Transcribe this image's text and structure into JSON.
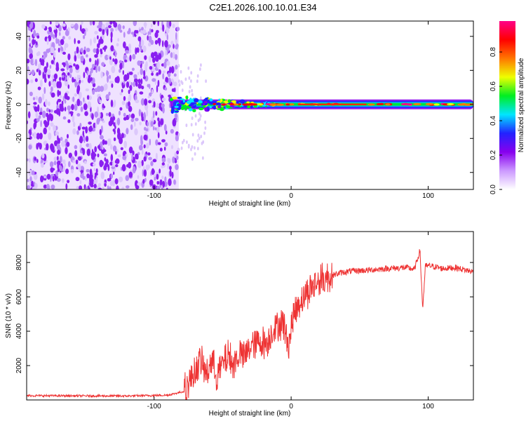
{
  "title": "C2E1.2026.100.10.01.E34",
  "chart_data": [
    {
      "type": "heatmap",
      "name": "spectrogram",
      "xlabel": "Height of straight line (km)",
      "ylabel": "Frequency (Hz)",
      "xlim": [
        -193,
        133
      ],
      "ylim": [
        -50,
        49
      ],
      "xticks": [
        -100,
        0,
        100
      ],
      "xtick_labels": [
        "-100",
        "0",
        "100"
      ],
      "yticks": [
        -40,
        -20,
        0,
        20,
        40
      ],
      "ytick_labels": [
        "-40",
        "-20",
        "0",
        "20",
        "40"
      ],
      "noise_region_x": [
        -193,
        -82
      ],
      "signal_center_hz": 0,
      "colorbar": {
        "label": "Normalized spectral amplitude",
        "range": [
          0,
          0.98
        ],
        "ticks": [
          0,
          0.2,
          0.4,
          0.6,
          0.8
        ],
        "tick_labels": [
          "0.0",
          "0.2",
          "0.4",
          "0.6",
          "0.8"
        ],
        "colors": [
          "#ffffff",
          "#cc99ff",
          "#8800ee",
          "#2222ff",
          "#00e5ff",
          "#00ee22",
          "#eeff00",
          "#ff7700",
          "#ff0000",
          "#ff0088"
        ]
      }
    },
    {
      "type": "line",
      "name": "snr",
      "xlabel": "Height of straight line (km)",
      "ylabel": "SNR (10 * v/v)",
      "xlim": [
        -193,
        133
      ],
      "ylim": [
        0,
        9800
      ],
      "xticks": [
        -100,
        0,
        100
      ],
      "xtick_labels": [
        "-100",
        "0",
        "100"
      ],
      "yticks": [
        2000,
        4000,
        6000,
        8000
      ],
      "ytick_labels": [
        "2000",
        "4000",
        "6000",
        "8000"
      ],
      "color": "#ee3333",
      "series": [
        {
          "name": "SNR",
          "x": [
            -193,
            -160,
            -120,
            -90,
            -78,
            -74,
            -70,
            -66,
            -62,
            -58,
            -54,
            -50,
            -46,
            -42,
            -38,
            -34,
            -30,
            -26,
            -22,
            -18,
            -14,
            -10,
            -6,
            -2,
            2,
            6,
            10,
            14,
            20,
            28,
            36,
            44,
            56,
            70,
            84,
            90,
            94,
            96,
            98,
            102,
            110,
            120,
            133
          ],
          "y": [
            250,
            240,
            230,
            280,
            500,
            1100,
            1700,
            2300,
            1500,
            2300,
            1400,
            2100,
            2600,
            2000,
            2700,
            2500,
            3100,
            3300,
            3400,
            3300,
            4000,
            4300,
            4600,
            3200,
            5000,
            5700,
            6100,
            6500,
            6900,
            7200,
            7400,
            7500,
            7550,
            7650,
            7700,
            7600,
            8700,
            5300,
            7800,
            7800,
            7650,
            7700,
            7450
          ]
        }
      ]
    }
  ]
}
